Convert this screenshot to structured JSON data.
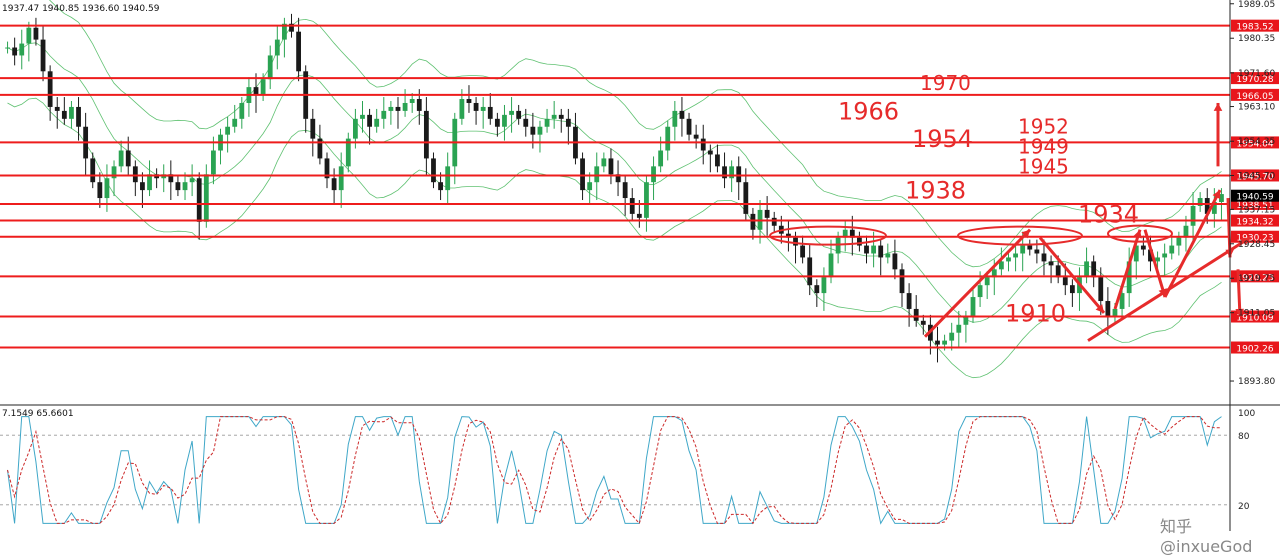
{
  "header": {
    "ohlc": "1937.47 1940.85 1936.60 1940.59"
  },
  "stochastic": {
    "label": "7.1549 65.6601",
    "levels": [
      "100",
      "80",
      "20"
    ]
  },
  "watermark": "知乎 @inxueGod",
  "colors": {
    "level_line": "#ee1c1c",
    "axis_box": "#e8161b",
    "annot": "#e62b2b",
    "bull": "#2aa352",
    "bear": "#1a1a1a",
    "band": "#37b24d",
    "stoch_main": "#3fa7c8",
    "stoch_signal": "#cc2a2a"
  },
  "chart_data": {
    "type": "candlestick",
    "price_range": [
      1888,
      1990
    ],
    "price_ticks": [
      "1989.05",
      "1980.35",
      "1971.60",
      "1963.10",
      "1954.35",
      "1945.70",
      "1937.15",
      "1928.45",
      "1919.75",
      "1911.05",
      "1893.80"
    ],
    "levels": [
      {
        "price": 1983.52,
        "label": "1983.52"
      },
      {
        "price": 1970.28,
        "label": "1970.28"
      },
      {
        "price": 1966.05,
        "label": "1966.05"
      },
      {
        "price": 1954.04,
        "label": "1954.04"
      },
      {
        "price": 1945.7,
        "label": "1945.70"
      },
      {
        "price": 1938.51,
        "label": "1938.51"
      },
      {
        "price": 1934.32,
        "label": "1934.32"
      },
      {
        "price": 1930.23,
        "label": "1930.23"
      },
      {
        "price": 1920.23,
        "label": "1920.23"
      },
      {
        "price": 1910.09,
        "label": "1910.09"
      },
      {
        "price": 1902.26,
        "label": "1902.26"
      }
    ],
    "current_price": "1940.59",
    "annotations": [
      "1970",
      "1966",
      "1954",
      "1952",
      "1949",
      "1945",
      "1938",
      "1934",
      "1910"
    ],
    "closes": [
      1978,
      1976,
      1979,
      1983,
      1980,
      1972,
      1963,
      1962,
      1960,
      1963,
      1958,
      1950,
      1944,
      1940,
      1945,
      1948,
      1952,
      1948,
      1944,
      1942,
      1946,
      1945,
      1946,
      1944,
      1942,
      1944,
      1945,
      1934,
      1946,
      1952,
      1956,
      1958,
      1960,
      1964,
      1968,
      1966,
      1970,
      1976,
      1980,
      1984,
      1982,
      1972,
      1960,
      1955,
      1950,
      1945,
      1942,
      1948,
      1955,
      1960,
      1961,
      1958,
      1960,
      1962,
      1963,
      1962,
      1964,
      1965,
      1962,
      1950,
      1944,
      1942,
      1948,
      1960,
      1965,
      1964,
      1962,
      1963,
      1960,
      1958,
      1961,
      1962,
      1960,
      1958,
      1956,
      1958,
      1960,
      1961,
      1960,
      1958,
      1950,
      1942,
      1944,
      1948,
      1950,
      1946,
      1944,
      1940,
      1936,
      1935,
      1944,
      1948,
      1952,
      1958,
      1962,
      1960,
      1956,
      1955,
      1952,
      1951,
      1948,
      1945,
      1948,
      1944,
      1936,
      1932,
      1937,
      1935,
      1933,
      1931,
      1930,
      1928,
      1925,
      1918,
      1916,
      1920,
      1926,
      1930,
      1932,
      1930,
      1928,
      1926,
      1928,
      1925,
      1926,
      1922,
      1916,
      1912,
      1909,
      1908,
      1904,
      1903,
      1904,
      1906,
      1908,
      1910,
      1915,
      1918,
      1920,
      1922,
      1924,
      1925,
      1926,
      1928,
      1927,
      1926,
      1924,
      1923,
      1920,
      1918,
      1916,
      1920,
      1924,
      1920,
      1914,
      1910,
      1912,
      1916,
      1924,
      1928,
      1927,
      1924,
      1925,
      1926,
      1928,
      1930,
      1933,
      1938,
      1940,
      1936,
      1939,
      1941
    ]
  }
}
